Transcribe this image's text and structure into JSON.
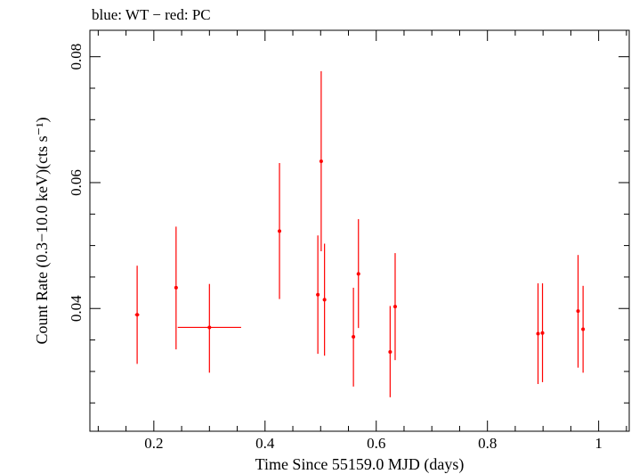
{
  "chart_data": {
    "type": "scatter",
    "title": "blue: WT − red: PC",
    "xlabel": "Time Since 55159.0 MJD (days)",
    "ylabel": "Count Rate (0.3−10.0 keV)(cts s⁻¹)",
    "xlim": [
      0.085,
      1.055
    ],
    "ylim": [
      0.0205,
      0.0842
    ],
    "xticks": [
      0.2,
      0.4,
      0.6,
      0.8,
      1
    ],
    "xtick_labels": [
      "0.2",
      "0.4",
      "0.6",
      "0.8",
      "1"
    ],
    "yticks": [
      0.04,
      0.06,
      0.08
    ],
    "ytick_labels": [
      "0.04",
      "0.06",
      "0.08"
    ],
    "grid": false,
    "series": [
      {
        "color": "#ff0000",
        "points": [
          {
            "x": 0.17,
            "y": 0.039,
            "xerr": 0.004,
            "ylo": 0.0312,
            "yhi": 0.0468
          },
          {
            "x": 0.24,
            "y": 0.0433,
            "xerr": 0.003,
            "ylo": 0.0335,
            "yhi": 0.053
          },
          {
            "x": 0.3,
            "y": 0.037,
            "xerr": 0.057,
            "ylo": 0.0298,
            "yhi": 0.0439
          },
          {
            "x": 0.426,
            "y": 0.0523,
            "xerr": 0.002,
            "ylo": 0.0415,
            "yhi": 0.0631
          },
          {
            "x": 0.495,
            "y": 0.0422,
            "xerr": 0.003,
            "ylo": 0.0328,
            "yhi": 0.0516
          },
          {
            "x": 0.501,
            "y": 0.0634,
            "xerr": 0.002,
            "ylo": 0.0491,
            "yhi": 0.0777
          },
          {
            "x": 0.507,
            "y": 0.0414,
            "xerr": 0.003,
            "ylo": 0.0325,
            "yhi": 0.0503
          },
          {
            "x": 0.559,
            "y": 0.0355,
            "xerr": 0.003,
            "ylo": 0.0276,
            "yhi": 0.0433
          },
          {
            "x": 0.568,
            "y": 0.0455,
            "xerr": 0.003,
            "ylo": 0.0369,
            "yhi": 0.0542
          },
          {
            "x": 0.625,
            "y": 0.0331,
            "xerr": 0.003,
            "ylo": 0.0259,
            "yhi": 0.0404
          },
          {
            "x": 0.634,
            "y": 0.0403,
            "xerr": 0.003,
            "ylo": 0.0318,
            "yhi": 0.0488
          },
          {
            "x": 0.891,
            "y": 0.036,
            "xerr": 0.003,
            "ylo": 0.028,
            "yhi": 0.044
          },
          {
            "x": 0.899,
            "y": 0.0361,
            "xerr": 0.003,
            "ylo": 0.0283,
            "yhi": 0.044
          },
          {
            "x": 0.963,
            "y": 0.0396,
            "xerr": 0.003,
            "ylo": 0.0306,
            "yhi": 0.0485
          },
          {
            "x": 0.972,
            "y": 0.0367,
            "xerr": 0.003,
            "ylo": 0.0298,
            "yhi": 0.0436
          }
        ]
      }
    ]
  }
}
